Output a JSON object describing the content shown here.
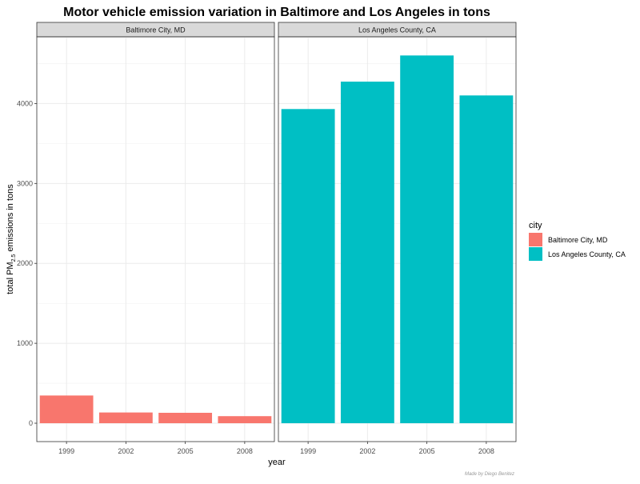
{
  "chart_data": {
    "type": "bar",
    "title": "Motor vehicle emission variation in Baltimore and Los Angeles in tons",
    "xlabel": "year",
    "ylabel": {
      "prefix": "total PM",
      "subscript": "2.5",
      "suffix": " emissions in tons"
    },
    "categories": [
      "1999",
      "2002",
      "2005",
      "2008"
    ],
    "y_ticks": [
      0,
      1000,
      2000,
      3000,
      4000
    ],
    "ylim": [
      -230,
      4835
    ],
    "grid": true,
    "facets": [
      {
        "label": "Baltimore City, MD",
        "series": "Baltimore City, MD",
        "values": [
          346.8,
          134.3,
          130.4,
          88.3
        ]
      },
      {
        "label": "Los Angeles County, CA",
        "series": "Los Angeles County, CA",
        "values": [
          3931.1,
          4274.0,
          4601.4,
          4101.3
        ]
      }
    ],
    "legend": {
      "title": "city",
      "placement": "right",
      "entries": [
        {
          "label": "Baltimore City, MD",
          "color": "#F8766D"
        },
        {
          "label": "Los Angeles County, CA",
          "color": "#00BFC4"
        }
      ]
    },
    "caption": "Made by Diego Benitez"
  }
}
